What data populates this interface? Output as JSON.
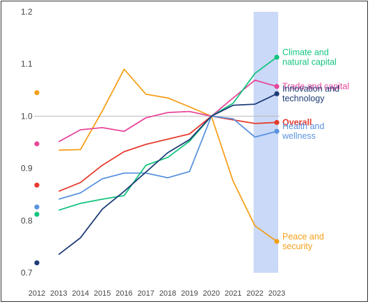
{
  "chart_data": {
    "type": "line",
    "title": "",
    "xlabel": "",
    "ylabel": "",
    "x": [
      "2012",
      "2013",
      "2014",
      "2015",
      "2016",
      "2017",
      "2018",
      "2019",
      "2020",
      "2021",
      "2022",
      "2023"
    ],
    "xlim": [
      2012,
      2023
    ],
    "ylim": [
      0.7,
      1.2
    ],
    "yticks": [
      "0.7",
      "0.8",
      "0.9",
      "1.0",
      "1.1",
      "1.2"
    ],
    "reference_line": 1.0,
    "highlight_range": [
      2022,
      2023
    ],
    "grid": false,
    "legend": "right, labels at line ends",
    "series": [
      {
        "name": "Peace and security",
        "label_lines": [
          "Peace and",
          "security"
        ],
        "color": "#F5A01A",
        "values": [
          1.045,
          0.935,
          0.936,
          1.01,
          1.09,
          1.042,
          1.035,
          1.018,
          1.0,
          0.875,
          0.79,
          0.76
        ]
      },
      {
        "name": "Trade and capital",
        "label_lines": [
          "Trade and capital"
        ],
        "color": "#E8479A",
        "values": [
          0.947,
          0.951,
          0.974,
          0.978,
          0.971,
          0.997,
          1.007,
          1.009,
          1.0,
          1.035,
          1.069,
          1.057
        ]
      },
      {
        "name": "Overall",
        "label_lines": [
          "Overall"
        ],
        "color": "#E63B2E",
        "values": [
          0.868,
          0.856,
          0.873,
          0.906,
          0.932,
          0.946,
          0.956,
          0.966,
          1.0,
          0.993,
          0.986,
          0.988
        ]
      },
      {
        "name": "Health and wellness",
        "label_lines": [
          "Health and",
          "wellness"
        ],
        "color": "#5B93E0",
        "values": [
          0.826,
          0.841,
          0.853,
          0.88,
          0.891,
          0.891,
          0.882,
          0.894,
          1.0,
          0.995,
          0.96,
          0.971
        ]
      },
      {
        "name": "Climate and natural capital",
        "label_lines": [
          "Climate and",
          "natural capital"
        ],
        "color": "#14C47F",
        "values": [
          0.812,
          0.82,
          0.833,
          0.841,
          0.848,
          0.906,
          0.921,
          0.952,
          1.0,
          1.025,
          1.082,
          1.113
        ]
      },
      {
        "name": "Innovation and technology",
        "label_lines": [
          "Innovation and",
          "technology"
        ],
        "color": "#1F3C78",
        "values": [
          0.719,
          0.735,
          0.767,
          0.822,
          0.856,
          0.893,
          0.93,
          0.955,
          1.0,
          1.021,
          1.023,
          1.043
        ]
      }
    ]
  }
}
